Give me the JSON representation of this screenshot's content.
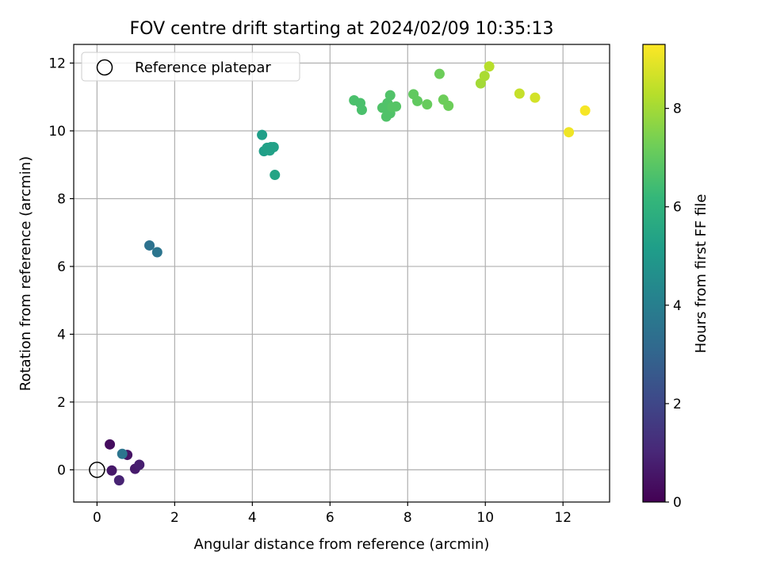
{
  "chart_data": {
    "type": "scatter",
    "title": "FOV centre drift starting at 2024/02/09 10:35:13",
    "xlabel": "Angular distance from reference (arcmin)",
    "ylabel": "Rotation from reference (arcmin)",
    "xlim": [
      -0.6,
      13.2
    ],
    "ylim": [
      -0.95,
      12.55
    ],
    "xticks": [
      "0",
      "2",
      "4",
      "6",
      "8",
      "10",
      "12"
    ],
    "xtick_values": [
      0,
      2,
      4,
      6,
      8,
      10,
      12
    ],
    "yticks": [
      "0",
      "2",
      "4",
      "6",
      "8",
      "10",
      "12"
    ],
    "ytick_values": [
      0,
      2,
      4,
      6,
      8,
      10,
      12
    ],
    "grid": true,
    "colormap": "viridis",
    "viridis_stops": [
      "#440154",
      "#482878",
      "#3e4989",
      "#31688e",
      "#26828e",
      "#1f9e89",
      "#35b779",
      "#6ece58",
      "#b5de2b",
      "#fde725"
    ],
    "colorbar": {
      "label": "Hours from first FF file",
      "range": [
        0,
        9.3
      ],
      "ticks": [
        "0",
        "2",
        "4",
        "6",
        "8"
      ],
      "tick_values": [
        0,
        2,
        4,
        6,
        8
      ]
    },
    "legend": {
      "position": "top-left",
      "entry": "Reference platepar",
      "marker": "hollow-circle"
    },
    "reference_point": {
      "x": 0,
      "y": 0
    },
    "points": [
      {
        "x": 0.33,
        "y": 0.75,
        "t": 0.3
      },
      {
        "x": 0.38,
        "y": -0.02,
        "t": 0.6
      },
      {
        "x": 0.57,
        "y": -0.31,
        "t": 0.9
      },
      {
        "x": 0.78,
        "y": 0.44,
        "t": 0.5
      },
      {
        "x": 0.98,
        "y": 0.03,
        "t": 0.7
      },
      {
        "x": 1.09,
        "y": 0.15,
        "t": 0.8
      },
      {
        "x": 0.65,
        "y": 0.47,
        "t": 3.6
      },
      {
        "x": 1.35,
        "y": 6.62,
        "t": 3.5
      },
      {
        "x": 1.55,
        "y": 6.42,
        "t": 3.6
      },
      {
        "x": 4.25,
        "y": 9.88,
        "t": 5.2
      },
      {
        "x": 4.3,
        "y": 9.4,
        "t": 5.2
      },
      {
        "x": 4.38,
        "y": 9.5,
        "t": 5.3
      },
      {
        "x": 4.45,
        "y": 9.42,
        "t": 5.3
      },
      {
        "x": 4.48,
        "y": 9.52,
        "t": 5.3
      },
      {
        "x": 4.55,
        "y": 9.52,
        "t": 5.3
      },
      {
        "x": 4.58,
        "y": 8.7,
        "t": 5.4
      },
      {
        "x": 6.62,
        "y": 10.9,
        "t": 6.6
      },
      {
        "x": 6.78,
        "y": 10.82,
        "t": 6.6
      },
      {
        "x": 6.82,
        "y": 10.62,
        "t": 6.6
      },
      {
        "x": 7.35,
        "y": 10.68,
        "t": 6.7
      },
      {
        "x": 7.45,
        "y": 10.42,
        "t": 6.7
      },
      {
        "x": 7.48,
        "y": 10.82,
        "t": 6.7
      },
      {
        "x": 7.55,
        "y": 11.05,
        "t": 6.7
      },
      {
        "x": 7.55,
        "y": 10.52,
        "t": 6.7
      },
      {
        "x": 7.6,
        "y": 10.7,
        "t": 6.8
      },
      {
        "x": 7.7,
        "y": 10.72,
        "t": 6.8
      },
      {
        "x": 8.15,
        "y": 11.08,
        "t": 7.0
      },
      {
        "x": 8.25,
        "y": 10.88,
        "t": 7.0
      },
      {
        "x": 8.5,
        "y": 10.78,
        "t": 7.1
      },
      {
        "x": 8.82,
        "y": 11.68,
        "t": 7.2
      },
      {
        "x": 8.92,
        "y": 10.92,
        "t": 7.2
      },
      {
        "x": 9.05,
        "y": 10.74,
        "t": 7.2
      },
      {
        "x": 9.88,
        "y": 11.4,
        "t": 8.0
      },
      {
        "x": 9.98,
        "y": 11.62,
        "t": 8.1
      },
      {
        "x": 10.1,
        "y": 11.9,
        "t": 8.3
      },
      {
        "x": 10.88,
        "y": 11.1,
        "t": 8.5
      },
      {
        "x": 11.28,
        "y": 10.98,
        "t": 8.7
      },
      {
        "x": 12.15,
        "y": 9.96,
        "t": 9.1
      },
      {
        "x": 12.57,
        "y": 10.6,
        "t": 9.2
      }
    ]
  }
}
